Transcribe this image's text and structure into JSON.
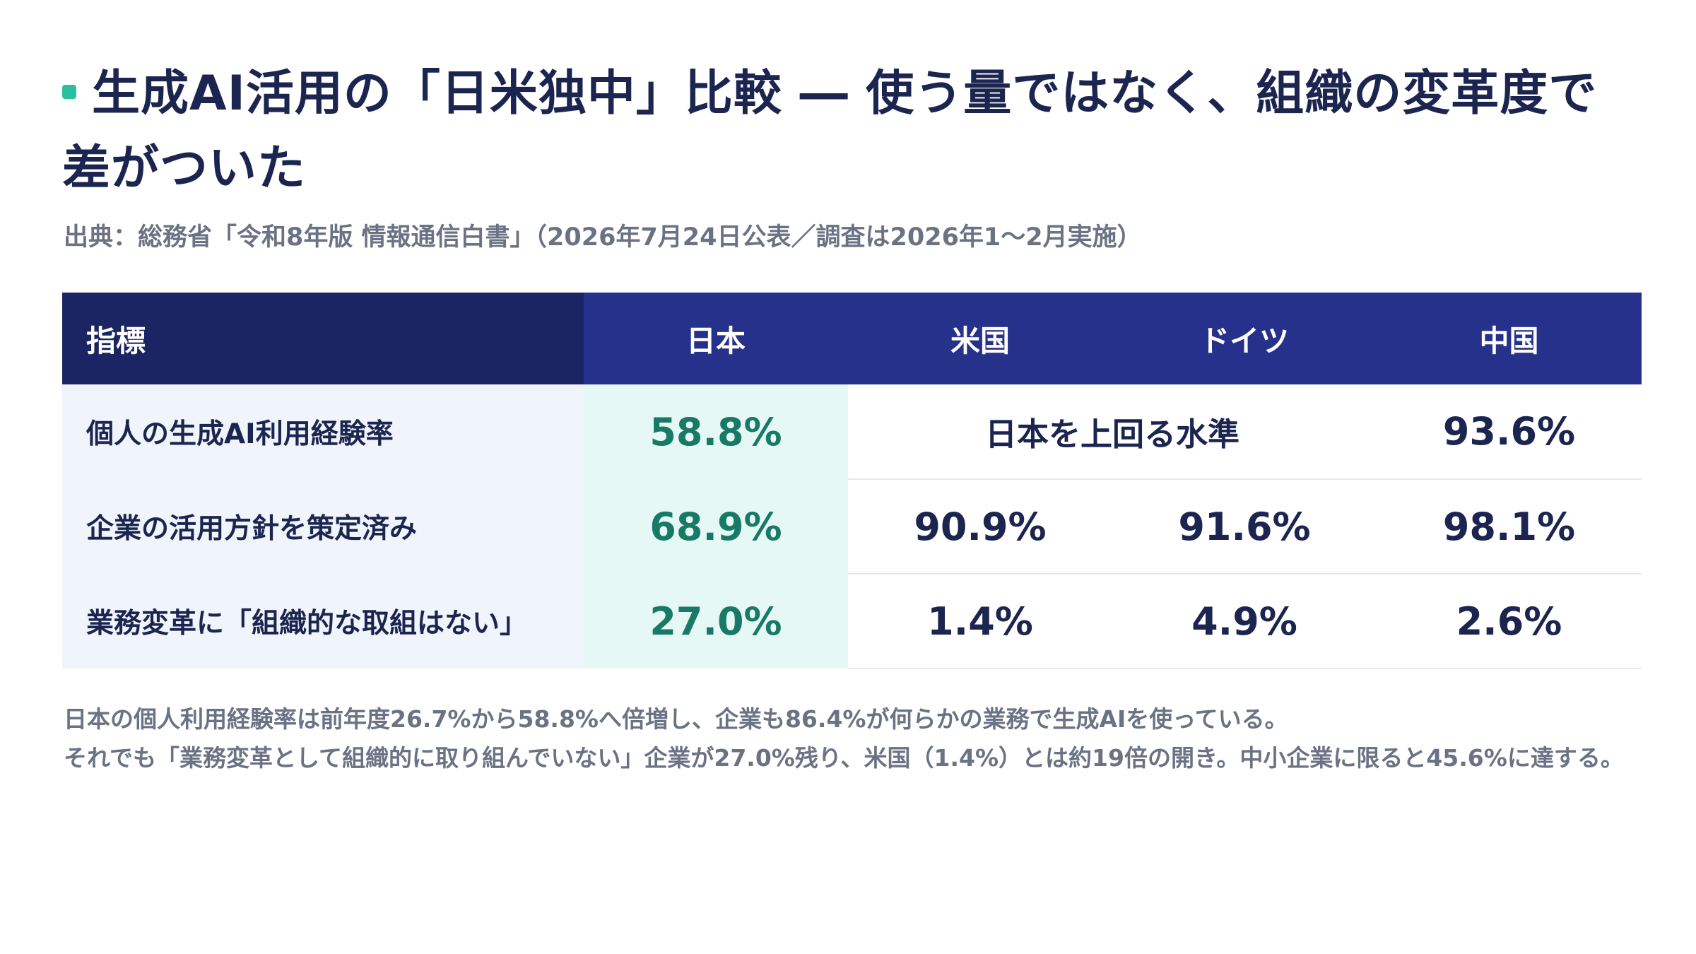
{
  "title": "生成AI活用の「日米独中」比較 ― 使う量ではなく、組織の変革度で差がついた",
  "source": "出典：総務省「令和8年版 情報通信白書」（2026年7月24日公表／調査は2026年1〜2月実施）",
  "colors": {
    "header_dark": "#1c2563",
    "header": "#26318c",
    "accent": "#2bbfa0",
    "japan_value": "#187a66",
    "japan_bg": "#e6f8f5",
    "metric_bg": "#f0f4fb",
    "muted_text": "#6b7284"
  },
  "chart_data": {
    "type": "table",
    "columns": [
      "指標",
      "日本",
      "米国",
      "ドイツ",
      "中国"
    ],
    "rows": [
      {
        "metric": "個人の生成AI利用経験率",
        "japan": "58.8%",
        "us_germany_merged": "日本を上回る水準",
        "china": "93.6%"
      },
      {
        "metric": "企業の活用方針を策定済み",
        "japan": "68.9%",
        "us": "90.9%",
        "germany": "91.6%",
        "china": "98.1%"
      },
      {
        "metric": "業務変革に「組織的な取組はない」",
        "japan": "27.0%",
        "us": "1.4%",
        "germany": "4.9%",
        "china": "2.6%"
      }
    ]
  },
  "note": {
    "line1": "日本の個人利用経験率は前年度26.7%から58.8%へ倍増し、企業も86.4%が何らかの業務で生成AIを使っている。",
    "line2": "それでも「業務変革として組織的に取り組んでいない」企業が27.0%残り、米国（1.4%）とは約19倍の開き。中小企業に限ると45.6%に達する。"
  }
}
